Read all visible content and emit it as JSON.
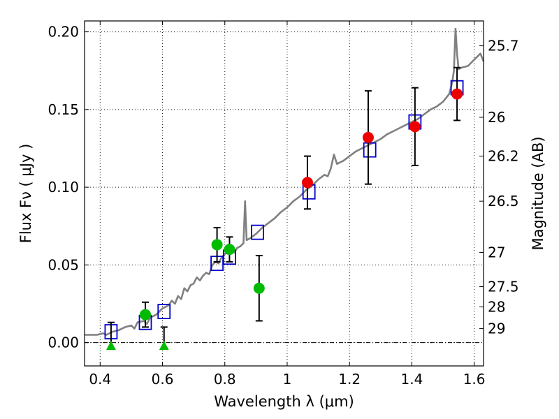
{
  "chart_data": {
    "type": "scatter",
    "xlabel": "Wavelength  λ (μm)",
    "ylabel": "Flux  Fν  ( μJy )",
    "ylabel_right": "Magnitude (AB)",
    "xlim": [
      0.35,
      1.63
    ],
    "ylim": [
      -0.015,
      0.207
    ],
    "x_ticks": [
      0.4,
      0.6,
      0.8,
      1.0,
      1.2,
      1.4,
      1.6
    ],
    "x_tick_labels": [
      "0.4",
      "0.6",
      "0.8",
      "1",
      "1.2",
      "1.4",
      "1.6"
    ],
    "y_ticks": [
      0.0,
      0.05,
      0.1,
      0.15,
      0.2
    ],
    "y_tick_labels": [
      "0.00",
      "0.05",
      "0.10",
      "0.15",
      "0.20"
    ],
    "right_ticks": [
      {
        "flux": 0.191,
        "label": "25.7"
      },
      {
        "flux": 0.145,
        "label": "26"
      },
      {
        "flux": 0.12,
        "label": "26.2"
      },
      {
        "flux": 0.091,
        "label": "26.5"
      },
      {
        "flux": 0.058,
        "label": "27"
      },
      {
        "flux": 0.036,
        "label": "27.5"
      },
      {
        "flux": 0.023,
        "label": "28"
      },
      {
        "flux": 0.009,
        "label": "29"
      }
    ],
    "grid": true,
    "zero_line": true,
    "series": [
      {
        "name": "model SED",
        "kind": "line",
        "color": "#808080",
        "points": [
          [
            0.35,
            0.005
          ],
          [
            0.37,
            0.005
          ],
          [
            0.39,
            0.005
          ],
          [
            0.41,
            0.006
          ],
          [
            0.42,
            0.005
          ],
          [
            0.44,
            0.007
          ],
          [
            0.46,
            0.008
          ],
          [
            0.48,
            0.01
          ],
          [
            0.5,
            0.011
          ],
          [
            0.51,
            0.009
          ],
          [
            0.52,
            0.013
          ],
          [
            0.54,
            0.014
          ],
          [
            0.55,
            0.012
          ],
          [
            0.56,
            0.016
          ],
          [
            0.58,
            0.018
          ],
          [
            0.59,
            0.02
          ],
          [
            0.6,
            0.022
          ],
          [
            0.62,
            0.024
          ],
          [
            0.63,
            0.027
          ],
          [
            0.64,
            0.025
          ],
          [
            0.65,
            0.03
          ],
          [
            0.66,
            0.028
          ],
          [
            0.67,
            0.035
          ],
          [
            0.68,
            0.033
          ],
          [
            0.69,
            0.037
          ],
          [
            0.7,
            0.038
          ],
          [
            0.71,
            0.042
          ],
          [
            0.72,
            0.04
          ],
          [
            0.73,
            0.043
          ],
          [
            0.74,
            0.045
          ],
          [
            0.75,
            0.044
          ],
          [
            0.76,
            0.05
          ],
          [
            0.77,
            0.052
          ],
          [
            0.78,
            0.051
          ],
          [
            0.79,
            0.055
          ],
          [
            0.8,
            0.057
          ],
          [
            0.81,
            0.059
          ],
          [
            0.82,
            0.06
          ],
          [
            0.83,
            0.058
          ],
          [
            0.84,
            0.061
          ],
          [
            0.85,
            0.062
          ],
          [
            0.86,
            0.064
          ],
          [
            0.865,
            0.091
          ],
          [
            0.87,
            0.066
          ],
          [
            0.88,
            0.067
          ],
          [
            0.9,
            0.07
          ],
          [
            0.92,
            0.074
          ],
          [
            0.94,
            0.077
          ],
          [
            0.96,
            0.08
          ],
          [
            0.98,
            0.084
          ],
          [
            1.0,
            0.087
          ],
          [
            1.02,
            0.091
          ],
          [
            1.04,
            0.094
          ],
          [
            1.06,
            0.098
          ],
          [
            1.08,
            0.101
          ],
          [
            1.1,
            0.105
          ],
          [
            1.12,
            0.108
          ],
          [
            1.13,
            0.107
          ],
          [
            1.14,
            0.112
          ],
          [
            1.15,
            0.121
          ],
          [
            1.16,
            0.115
          ],
          [
            1.18,
            0.117
          ],
          [
            1.2,
            0.12
          ],
          [
            1.22,
            0.123
          ],
          [
            1.24,
            0.125
          ],
          [
            1.26,
            0.127
          ],
          [
            1.28,
            0.129
          ],
          [
            1.3,
            0.131
          ],
          [
            1.32,
            0.134
          ],
          [
            1.34,
            0.136
          ],
          [
            1.36,
            0.138
          ],
          [
            1.38,
            0.14
          ],
          [
            1.4,
            0.142
          ],
          [
            1.42,
            0.144
          ],
          [
            1.44,
            0.147
          ],
          [
            1.46,
            0.15
          ],
          [
            1.48,
            0.152
          ],
          [
            1.5,
            0.155
          ],
          [
            1.52,
            0.16
          ],
          [
            1.53,
            0.168
          ],
          [
            1.535,
            0.175
          ],
          [
            1.54,
            0.202
          ],
          [
            1.545,
            0.186
          ],
          [
            1.55,
            0.176
          ],
          [
            1.56,
            0.177
          ],
          [
            1.58,
            0.178
          ],
          [
            1.6,
            0.182
          ],
          [
            1.62,
            0.186
          ],
          [
            1.63,
            0.181
          ]
        ]
      },
      {
        "name": "model band fluxes",
        "kind": "open-square",
        "color": "#0000cc",
        "points": [
          [
            0.435,
            0.007
          ],
          [
            0.545,
            0.013
          ],
          [
            0.605,
            0.02
          ],
          [
            0.775,
            0.051
          ],
          [
            0.815,
            0.055
          ],
          [
            0.905,
            0.071
          ],
          [
            1.07,
            0.097
          ],
          [
            1.265,
            0.124
          ],
          [
            1.41,
            0.142
          ],
          [
            1.545,
            0.164
          ]
        ]
      },
      {
        "name": "optical detections",
        "kind": "filled-circle",
        "color": "#00bb00",
        "points": [
          {
            "x": 0.545,
            "y": 0.018,
            "err": 0.008
          },
          {
            "x": 0.775,
            "y": 0.063,
            "err": 0.011
          },
          {
            "x": 0.815,
            "y": 0.06,
            "err": 0.008
          },
          {
            "x": 0.91,
            "y": 0.035,
            "err": 0.021
          }
        ]
      },
      {
        "name": "infrared detections",
        "kind": "filled-circle",
        "color": "#ee0000",
        "points": [
          {
            "x": 1.065,
            "y": 0.103,
            "err": 0.017
          },
          {
            "x": 1.26,
            "y": 0.132,
            "err": 0.03
          },
          {
            "x": 1.41,
            "y": 0.139,
            "err": 0.025
          },
          {
            "x": 1.545,
            "y": 0.16,
            "err": 0.017
          }
        ]
      },
      {
        "name": "upper limits",
        "kind": "triangle",
        "color": "#00bb00",
        "points": [
          {
            "x": 0.435,
            "y": -0.002,
            "err_up": 0.015
          },
          {
            "x": 0.605,
            "y": -0.002,
            "err_up": 0.012
          }
        ]
      }
    ]
  }
}
